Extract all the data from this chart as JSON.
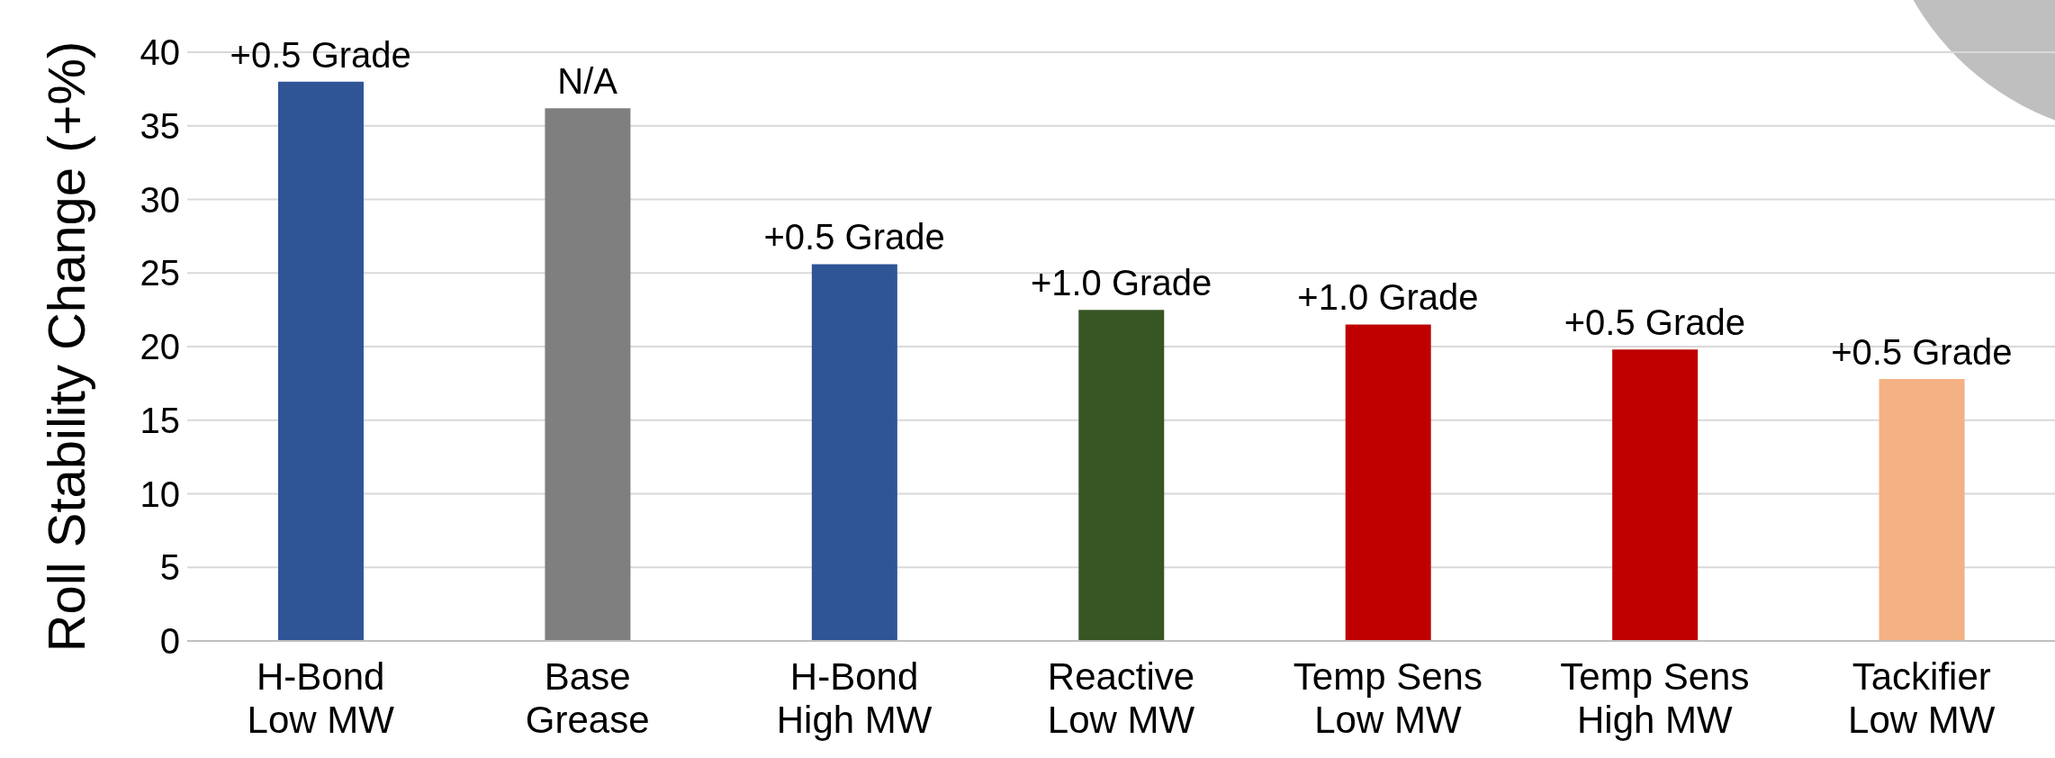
{
  "chart_data": {
    "type": "bar",
    "ylabel": "Roll Stability Change (+%)",
    "categories": [
      "H-Bond\nLow MW",
      "Base\nGrease",
      "H-Bond\nHigh MW",
      "Reactive\nLow MW",
      "Temp Sens\nLow MW",
      "Temp Sens\nHigh MW",
      "Tackifier\nLow MW"
    ],
    "values": [
      38,
      36.2,
      25.6,
      22.5,
      21.5,
      19.8,
      17.8
    ],
    "colors": [
      "#2f5597",
      "#7f7f7f",
      "#2f5597",
      "#375623",
      "#c00000",
      "#c00000",
      "#f4b183"
    ],
    "ylim": [
      0,
      40
    ],
    "yticks": [
      0,
      5,
      10,
      15,
      20,
      25,
      30,
      35,
      40
    ],
    "grid": "y",
    "annotations": [
      {
        "text": "+0.5 Grade",
        "x": "H-Bond\nLow MW",
        "y": 38
      },
      {
        "text": "N/A",
        "x": "Base\nGrease",
        "y": 36.2
      },
      {
        "text": "+0.5 Grade",
        "x": "H-Bond\nHigh MW",
        "y": 25.6
      },
      {
        "text": "+1.0 Grade",
        "x": "Reactive\nLow MW",
        "y": 22.5
      },
      {
        "text": "+1.0 Grade",
        "x": "Temp Sens\nLow MW",
        "y": 21.5
      },
      {
        "text": "+0.5 Grade",
        "x": "Temp Sens\nHigh MW",
        "y": 19.8
      },
      {
        "text": "+0.5 Grade",
        "x": "Tackifier\nLow MW",
        "y": 17.8
      }
    ]
  }
}
